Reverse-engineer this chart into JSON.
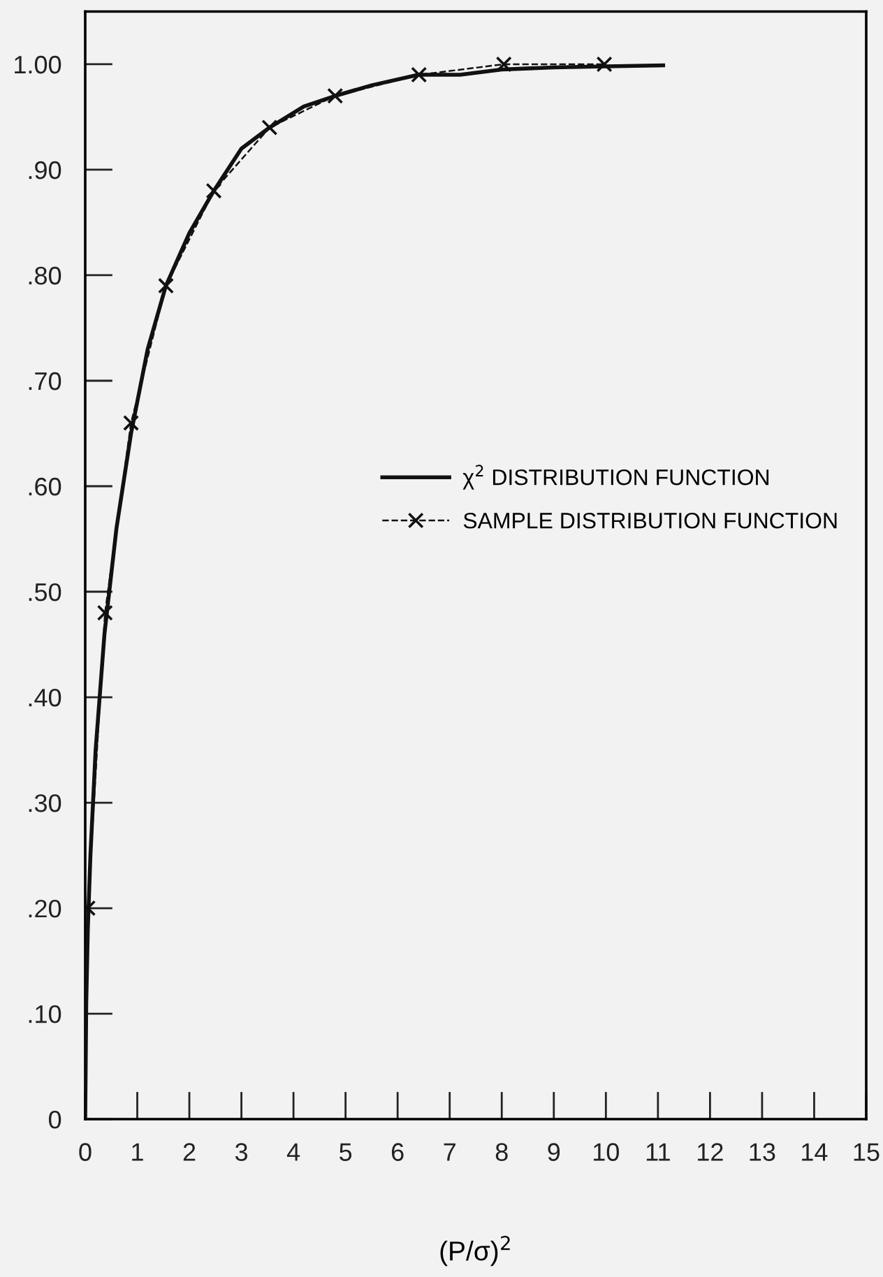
{
  "chart_data": {
    "type": "line",
    "xlabel": "(P/σ)$^{2}$",
    "xlim": [
      0,
      15
    ],
    "ylim": [
      0,
      1.05
    ],
    "xticks": [
      0,
      1,
      2,
      3,
      4,
      5,
      6,
      7,
      8,
      9,
      10,
      11,
      12,
      13,
      14,
      15
    ],
    "yticks": [
      {
        "value": 0,
        "label": "0"
      },
      {
        "value": 0.1,
        "label": ".10"
      },
      {
        "value": 0.2,
        "label": ".20"
      },
      {
        "value": 0.3,
        "label": ".30"
      },
      {
        "value": 0.4,
        "label": ".40"
      },
      {
        "value": 0.5,
        "label": ".50"
      },
      {
        "value": 0.6,
        "label": ".60"
      },
      {
        "value": 0.7,
        "label": ".70"
      },
      {
        "value": 0.8,
        "label": ".80"
      },
      {
        "value": 0.9,
        "label": ".90"
      },
      {
        "value": 1.0,
        "label": "1.00"
      }
    ],
    "grid": false,
    "legend": "right",
    "series": [
      {
        "name": "χ$^{2}$ DISTRIBUTION FUNCTION",
        "color": "#111111",
        "line_style": "solid",
        "marker": "none",
        "x": [
          0,
          0.02,
          0.05,
          0.1,
          0.2,
          0.37,
          0.6,
          0.88,
          1.2,
          1.55,
          2,
          2.47,
          3,
          3.54,
          4.2,
          4.8,
          5.5,
          6.4,
          7.2,
          8,
          9,
          10,
          11.1
        ],
        "values": [
          0,
          0.11,
          0.18,
          0.25,
          0.35,
          0.46,
          0.56,
          0.65,
          0.73,
          0.79,
          0.84,
          0.88,
          0.92,
          0.94,
          0.96,
          0.97,
          0.98,
          0.99,
          0.99,
          0.995,
          0.997,
          0.998,
          0.999
        ]
      },
      {
        "name": "SAMPLE DISTRIBUTION FUNCTION",
        "color": "#111111",
        "line_style": "dashed",
        "marker": "cross",
        "x": [
          0.05,
          0.38,
          0.88,
          1.55,
          2.47,
          3.54,
          4.8,
          6.41,
          8.04,
          9.97
        ],
        "values": [
          0.2,
          0.48,
          0.66,
          0.79,
          0.88,
          0.94,
          0.97,
          0.99,
          1.0,
          1.0
        ]
      }
    ]
  }
}
